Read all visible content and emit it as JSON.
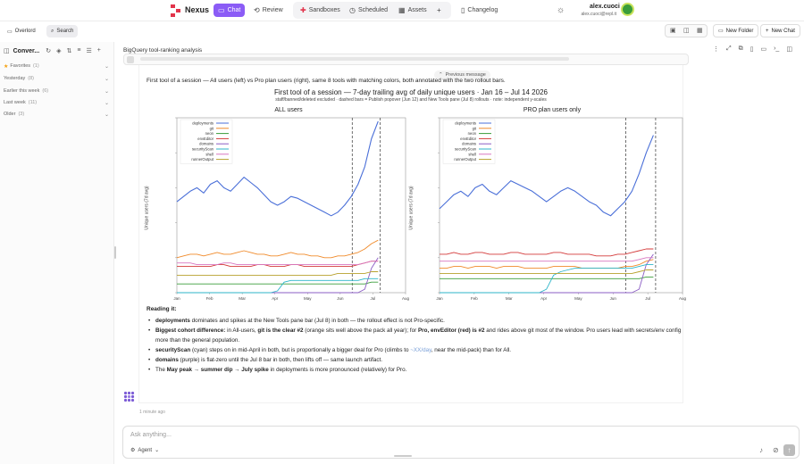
{
  "app": {
    "brand": "Nexus",
    "user_name": "alex.cuoci",
    "user_email": "alex.cuoci@repl.it",
    "accent_color": "#8b5cf6"
  },
  "nav": {
    "chat": "Chat",
    "review": "Review",
    "sandboxes": "Sandboxes",
    "scheduled": "Scheduled",
    "assets": "Assets",
    "changelog": "Changelog"
  },
  "toolbar": {
    "overlord": "Overlord",
    "search": "Search",
    "new_folder": "New Folder",
    "new_chat": "New Chat"
  },
  "sidebar": {
    "title": "Conver...",
    "sections": [
      {
        "label": "Favorites",
        "count": "(1)"
      },
      {
        "label": "Yesterday",
        "count": "(8)"
      },
      {
        "label": "Earlier this week",
        "count": "(6)"
      },
      {
        "label": "Last week",
        "count": "(11)"
      },
      {
        "label": "Older",
        "count": "(3)"
      }
    ]
  },
  "main": {
    "breadcrumb": "BigQuery tool-ranking analysis",
    "previous_message": "Previous message",
    "lead": "First tool of a session — All users (left) vs Pro plan users (right), same 8 tools with matching colors, both annotated with the two rollout bars.",
    "reading_heading": "Reading it:",
    "bullets": [
      {
        "bold": "deployments",
        "text": " dominates and spikes at the New Tools pane bar (Jul 8) in both — the rollout effect is not Pro-specific."
      },
      {
        "bold": "Biggest cohort difference:",
        "text": " in All-users, ",
        "bold2": "git is the clear #2",
        "text2": " (orange sits well above the pack all year); for ",
        "bold3": "Pro, envEditor (red) is #2",
        "text3": " and rides above git most of the window. Pro users lead with secrets/env config more than the general population."
      },
      {
        "bold": "securityScan",
        "text": " (cyan) steps on in mid-April in both, but is proportionally a bigger deal for Pro (climbs to ",
        "link": "~XX/day",
        "text2": ", near the mid-pack) than for All."
      },
      {
        "bold": "domains",
        "text": " (purple) is flat-zero until the Jul 8 bar in both, then lifts off — same launch artifact."
      },
      {
        "pre": "The ",
        "bold": "May peak → summer dip → July spike",
        "text": " in deployments is more pronounced (relatively) for Pro."
      }
    ],
    "timestamp": "1 minute ago"
  },
  "composer": {
    "placeholder": "Ask anything...",
    "agent_label": "Agent"
  },
  "chart_data": {
    "type": "line",
    "title": "First tool of a session — 7-day trailing avg of daily unique users · Jan 16 – Jul 14 2026",
    "subtitle": "staff/banned/deleted excluded · dashed bars = Publish popover (Jun 12) and New Tools pane (Jul 8) rollouts · note: independent y-scales",
    "ylabel": "Unique users (7d avg)",
    "x_ticks": [
      "Jan",
      "Feb",
      "Mar",
      "Apr",
      "May",
      "Jun",
      "Jul",
      "Aug"
    ],
    "rollout_markers": [
      "Jun 12",
      "Jul 8"
    ],
    "legend": [
      "deployments",
      "git",
      "neon",
      "envEditor",
      "domains",
      "securityScan",
      "shell",
      "runnerOutput"
    ],
    "colors": {
      "deployments": "#4a6fd8",
      "git": "#f08a2a",
      "neon": "#3a9d3a",
      "envEditor": "#d43a3a",
      "domains": "#8b5cc4",
      "securityScan": "#2cb5c8",
      "shell": "#d877c0",
      "runnerOutput": "#b8a12c"
    },
    "panels": [
      {
        "title": "ALL users",
        "ylim": [
          0,
          100
        ],
        "series": [
          {
            "name": "deployments",
            "values": [
              52,
              55,
              58,
              60,
              57,
              62,
              64,
              60,
              58,
              62,
              66,
              63,
              60,
              56,
              52,
              50,
              52,
              55,
              54,
              52,
              50,
              48,
              46,
              44,
              46,
              50,
              55,
              62,
              72,
              88,
              98
            ]
          },
          {
            "name": "git",
            "values": [
              20,
              21,
              22,
              22,
              21,
              22,
              23,
              22,
              22,
              23,
              24,
              23,
              22,
              22,
              21,
              21,
              22,
              23,
              22,
              22,
              21,
              21,
              20,
              20,
              21,
              21,
              22,
              23,
              25,
              28,
              30
            ]
          },
          {
            "name": "neon",
            "values": [
              5,
              5,
              5,
              5,
              5,
              5,
              5,
              5,
              5,
              5,
              5,
              5,
              5,
              5,
              5,
              5,
              5,
              5,
              5,
              5,
              5,
              5,
              5,
              5,
              5,
              5,
              5,
              5,
              5,
              6,
              6
            ]
          },
          {
            "name": "envEditor",
            "values": [
              15,
              15,
              15,
              15,
              15,
              15,
              16,
              16,
              15,
              15,
              15,
              15,
              16,
              16,
              15,
              15,
              15,
              16,
              16,
              15,
              15,
              15,
              15,
              15,
              15,
              15,
              15,
              16,
              17,
              18,
              18
            ]
          },
          {
            "name": "domains",
            "values": [
              0,
              0,
              0,
              0,
              0,
              0,
              0,
              0,
              0,
              0,
              0,
              0,
              0,
              0,
              0,
              0,
              0,
              0,
              0,
              0,
              0,
              0,
              0,
              0,
              0,
              0,
              0,
              0,
              2,
              14,
              20
            ]
          },
          {
            "name": "securityScan",
            "values": [
              0,
              0,
              0,
              0,
              0,
              0,
              0,
              0,
              0,
              0,
              0,
              0,
              0,
              0,
              0,
              1,
              6,
              7,
              7,
              7,
              7,
              7,
              7,
              7,
              7,
              7,
              7,
              7,
              8,
              8,
              8
            ]
          },
          {
            "name": "shell",
            "values": [
              17,
              17,
              17,
              16,
              16,
              16,
              16,
              17,
              17,
              16,
              16,
              16,
              16,
              16,
              16,
              16,
              16,
              16,
              16,
              16,
              16,
              16,
              16,
              16,
              16,
              16,
              16,
              16,
              17,
              18,
              18
            ]
          },
          {
            "name": "runnerOutput",
            "values": [
              10,
              10,
              10,
              10,
              10,
              10,
              10,
              10,
              10,
              10,
              10,
              10,
              10,
              10,
              10,
              10,
              10,
              10,
              10,
              10,
              10,
              10,
              10,
              10,
              11,
              11,
              11,
              11,
              11,
              12,
              12
            ]
          }
        ]
      },
      {
        "title": "PRO plan users only",
        "ylim": [
          0,
          100
        ],
        "series": [
          {
            "name": "deployments",
            "values": [
              48,
              52,
              56,
              58,
              55,
              60,
              62,
              58,
              56,
              60,
              64,
              62,
              60,
              58,
              55,
              52,
              55,
              58,
              60,
              58,
              55,
              52,
              50,
              46,
              44,
              48,
              52,
              58,
              68,
              80,
              90
            ]
          },
          {
            "name": "git",
            "values": [
              14,
              14,
              15,
              15,
              14,
              15,
              15,
              15,
              14,
              15,
              15,
              15,
              14,
              14,
              14,
              14,
              15,
              15,
              15,
              15,
              14,
              14,
              14,
              14,
              14,
              14,
              15,
              15,
              16,
              18,
              19
            ]
          },
          {
            "name": "neon",
            "values": [
              8,
              8,
              8,
              8,
              8,
              8,
              8,
              8,
              8,
              8,
              8,
              8,
              8,
              8,
              8,
              8,
              8,
              8,
              8,
              8,
              8,
              8,
              8,
              8,
              8,
              8,
              8,
              8,
              8,
              9,
              9
            ]
          },
          {
            "name": "envEditor",
            "values": [
              22,
              22,
              23,
              22,
              22,
              23,
              23,
              22,
              22,
              22,
              23,
              23,
              22,
              22,
              22,
              22,
              23,
              23,
              22,
              22,
              22,
              22,
              21,
              21,
              21,
              22,
              22,
              23,
              24,
              25,
              25
            ]
          },
          {
            "name": "domains",
            "values": [
              0,
              0,
              0,
              0,
              0,
              0,
              0,
              0,
              0,
              0,
              0,
              0,
              0,
              0,
              0,
              0,
              0,
              0,
              0,
              0,
              0,
              0,
              0,
              0,
              0,
              0,
              0,
              0,
              2,
              16,
              22
            ]
          },
          {
            "name": "securityScan",
            "values": [
              0,
              0,
              0,
              0,
              0,
              0,
              0,
              0,
              0,
              0,
              0,
              0,
              0,
              0,
              0,
              2,
              10,
              12,
              13,
              14,
              14,
              14,
              14,
              14,
              14,
              14,
              14,
              14,
              15,
              16,
              16
            ]
          },
          {
            "name": "shell",
            "values": [
              18,
              18,
              18,
              18,
              18,
              18,
              18,
              18,
              18,
              18,
              18,
              18,
              18,
              18,
              18,
              18,
              18,
              18,
              18,
              18,
              18,
              18,
              18,
              18,
              18,
              18,
              18,
              18,
              19,
              20,
              20
            ]
          },
          {
            "name": "runnerOutput",
            "values": [
              11,
              11,
              11,
              11,
              11,
              11,
              11,
              11,
              11,
              11,
              11,
              11,
              11,
              11,
              11,
              11,
              11,
              11,
              11,
              11,
              11,
              11,
              11,
              11,
              11,
              11,
              11,
              11,
              12,
              13,
              13
            ]
          }
        ]
      }
    ]
  }
}
